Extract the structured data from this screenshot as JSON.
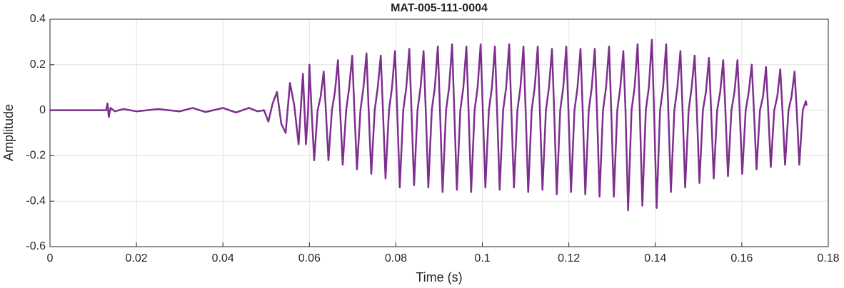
{
  "chart_data": {
    "type": "line",
    "title": "MAT-005-111-0004",
    "xlabel": "Time (s)",
    "ylabel": "Amplitude",
    "color": "#7e2f8e",
    "grid": true,
    "xlim": [
      0,
      0.18
    ],
    "xticks": [
      0,
      0.02,
      0.04,
      0.06,
      0.08,
      0.1,
      0.12,
      0.14,
      0.16,
      0.18
    ],
    "ylim": [
      -0.6,
      0.4
    ],
    "yticks": [
      -0.6,
      -0.4,
      -0.2,
      0,
      0.2,
      0.4
    ],
    "x": [
      0,
      0.013,
      0.0133,
      0.0136,
      0.014,
      0.015,
      0.017,
      0.02,
      0.025,
      0.03,
      0.033,
      0.036,
      0.04,
      0.043,
      0.046,
      0.048,
      0.0495,
      0.0505,
      0.0515,
      0.0525,
      0.0535,
      0.0545,
      0.0555,
      0.0565,
      0.0575,
      0.0585,
      0.0592,
      0.0597,
      0.06,
      0.0605,
      0.0611,
      0.0619,
      0.0626,
      0.0633,
      0.0638,
      0.0644,
      0.0652,
      0.0659,
      0.0666,
      0.0671,
      0.0677,
      0.0685,
      0.0692,
      0.0699,
      0.0704,
      0.071,
      0.0718,
      0.0725,
      0.0732,
      0.0737,
      0.0743,
      0.0751,
      0.0758,
      0.0765,
      0.077,
      0.0776,
      0.0784,
      0.0791,
      0.0798,
      0.0803,
      0.0809,
      0.0817,
      0.0824,
      0.0831,
      0.0836,
      0.0842,
      0.085,
      0.0857,
      0.0864,
      0.0869,
      0.0875,
      0.0883,
      0.089,
      0.0897,
      0.0902,
      0.0908,
      0.0916,
      0.0923,
      0.093,
      0.0935,
      0.0941,
      0.0949,
      0.0956,
      0.0963,
      0.0968,
      0.0974,
      0.0982,
      0.0989,
      0.0996,
      0.1001,
      0.1007,
      0.1015,
      0.1022,
      0.1029,
      0.1034,
      0.104,
      0.1048,
      0.1055,
      0.1062,
      0.1067,
      0.1073,
      0.1081,
      0.1088,
      0.1095,
      0.11,
      0.1106,
      0.1114,
      0.1121,
      0.1128,
      0.1133,
      0.1139,
      0.1147,
      0.1154,
      0.1161,
      0.1166,
      0.1172,
      0.118,
      0.1187,
      0.1194,
      0.1199,
      0.1205,
      0.1213,
      0.122,
      0.1227,
      0.1232,
      0.1238,
      0.1246,
      0.1253,
      0.126,
      0.1265,
      0.1271,
      0.1279,
      0.1286,
      0.1293,
      0.1298,
      0.1304,
      0.1312,
      0.1319,
      0.1326,
      0.1331,
      0.1337,
      0.1345,
      0.1352,
      0.1359,
      0.1364,
      0.137,
      0.1378,
      0.1385,
      0.1392,
      0.1397,
      0.1403,
      0.1411,
      0.1418,
      0.1425,
      0.143,
      0.1436,
      0.1444,
      0.1451,
      0.1458,
      0.1463,
      0.1469,
      0.1477,
      0.1484,
      0.1491,
      0.1496,
      0.1502,
      0.151,
      0.1517,
      0.1524,
      0.1529,
      0.1535,
      0.1543,
      0.155,
      0.1557,
      0.1562,
      0.1568,
      0.1576,
      0.1583,
      0.159,
      0.1595,
      0.1601,
      0.1609,
      0.1616,
      0.1623,
      0.1628,
      0.1634,
      0.1642,
      0.1649,
      0.1656,
      0.1661,
      0.1667,
      0.1675,
      0.1682,
      0.1689,
      0.1694,
      0.17,
      0.1708,
      0.1715,
      0.1722,
      0.1727,
      0.1733,
      0.1741,
      0.1748,
      0.175
    ],
    "values": [
      0,
      0,
      0.03,
      -0.03,
      0.01,
      -0.005,
      0.005,
      -0.005,
      0.005,
      -0.005,
      0.01,
      -0.008,
      0.01,
      -0.01,
      0.01,
      -0.005,
      0,
      -0.05,
      0.03,
      0.08,
      -0.06,
      -0.1,
      0.12,
      0.02,
      -0.15,
      0.16,
      -0.15,
      0,
      0.2,
      0,
      -0.22,
      0,
      0.06,
      0.17,
      0,
      -0.22,
      0,
      0.08,
      0.22,
      0,
      -0.24,
      0,
      0.1,
      0.24,
      0,
      -0.26,
      0,
      0.1,
      0.25,
      0,
      -0.28,
      0,
      0.1,
      0.24,
      0,
      -0.3,
      0,
      0.1,
      0.26,
      0,
      -0.34,
      0,
      0.1,
      0.27,
      0,
      -0.33,
      0,
      0.1,
      0.26,
      0,
      -0.34,
      0,
      0.1,
      0.28,
      0,
      -0.36,
      0,
      0.1,
      0.29,
      0,
      -0.35,
      0,
      0.1,
      0.28,
      0,
      -0.36,
      0,
      0.1,
      0.29,
      0,
      -0.34,
      0,
      0.1,
      0.28,
      0,
      -0.35,
      0,
      0.1,
      0.29,
      0,
      -0.34,
      0,
      0.1,
      0.28,
      0,
      -0.36,
      0,
      0.1,
      0.28,
      0,
      -0.35,
      0,
      0.1,
      0.27,
      0,
      -0.37,
      0,
      0.1,
      0.28,
      0,
      -0.36,
      0,
      0.1,
      0.27,
      0,
      -0.37,
      0,
      0.1,
      0.27,
      0,
      -0.38,
      0,
      0.1,
      0.28,
      0,
      -0.38,
      0,
      0.1,
      0.26,
      0,
      -0.44,
      0,
      0.1,
      0.29,
      0,
      -0.42,
      0,
      0.1,
      0.31,
      0,
      -0.43,
      0,
      0.1,
      0.29,
      0,
      -0.36,
      0,
      0.1,
      0.26,
      0,
      -0.34,
      0,
      0.1,
      0.24,
      0,
      -0.32,
      0,
      0.08,
      0.23,
      0,
      -0.3,
      0,
      0.08,
      0.22,
      0,
      -0.29,
      0,
      0.08,
      0.22,
      0,
      -0.28,
      0,
      0.08,
      0.2,
      0,
      -0.26,
      0,
      0.06,
      0.19,
      0,
      -0.25,
      0,
      0.06,
      0.18,
      0,
      -0.24,
      0,
      0.06,
      0.17,
      0,
      -0.24,
      0,
      0.04,
      0.02
    ]
  }
}
